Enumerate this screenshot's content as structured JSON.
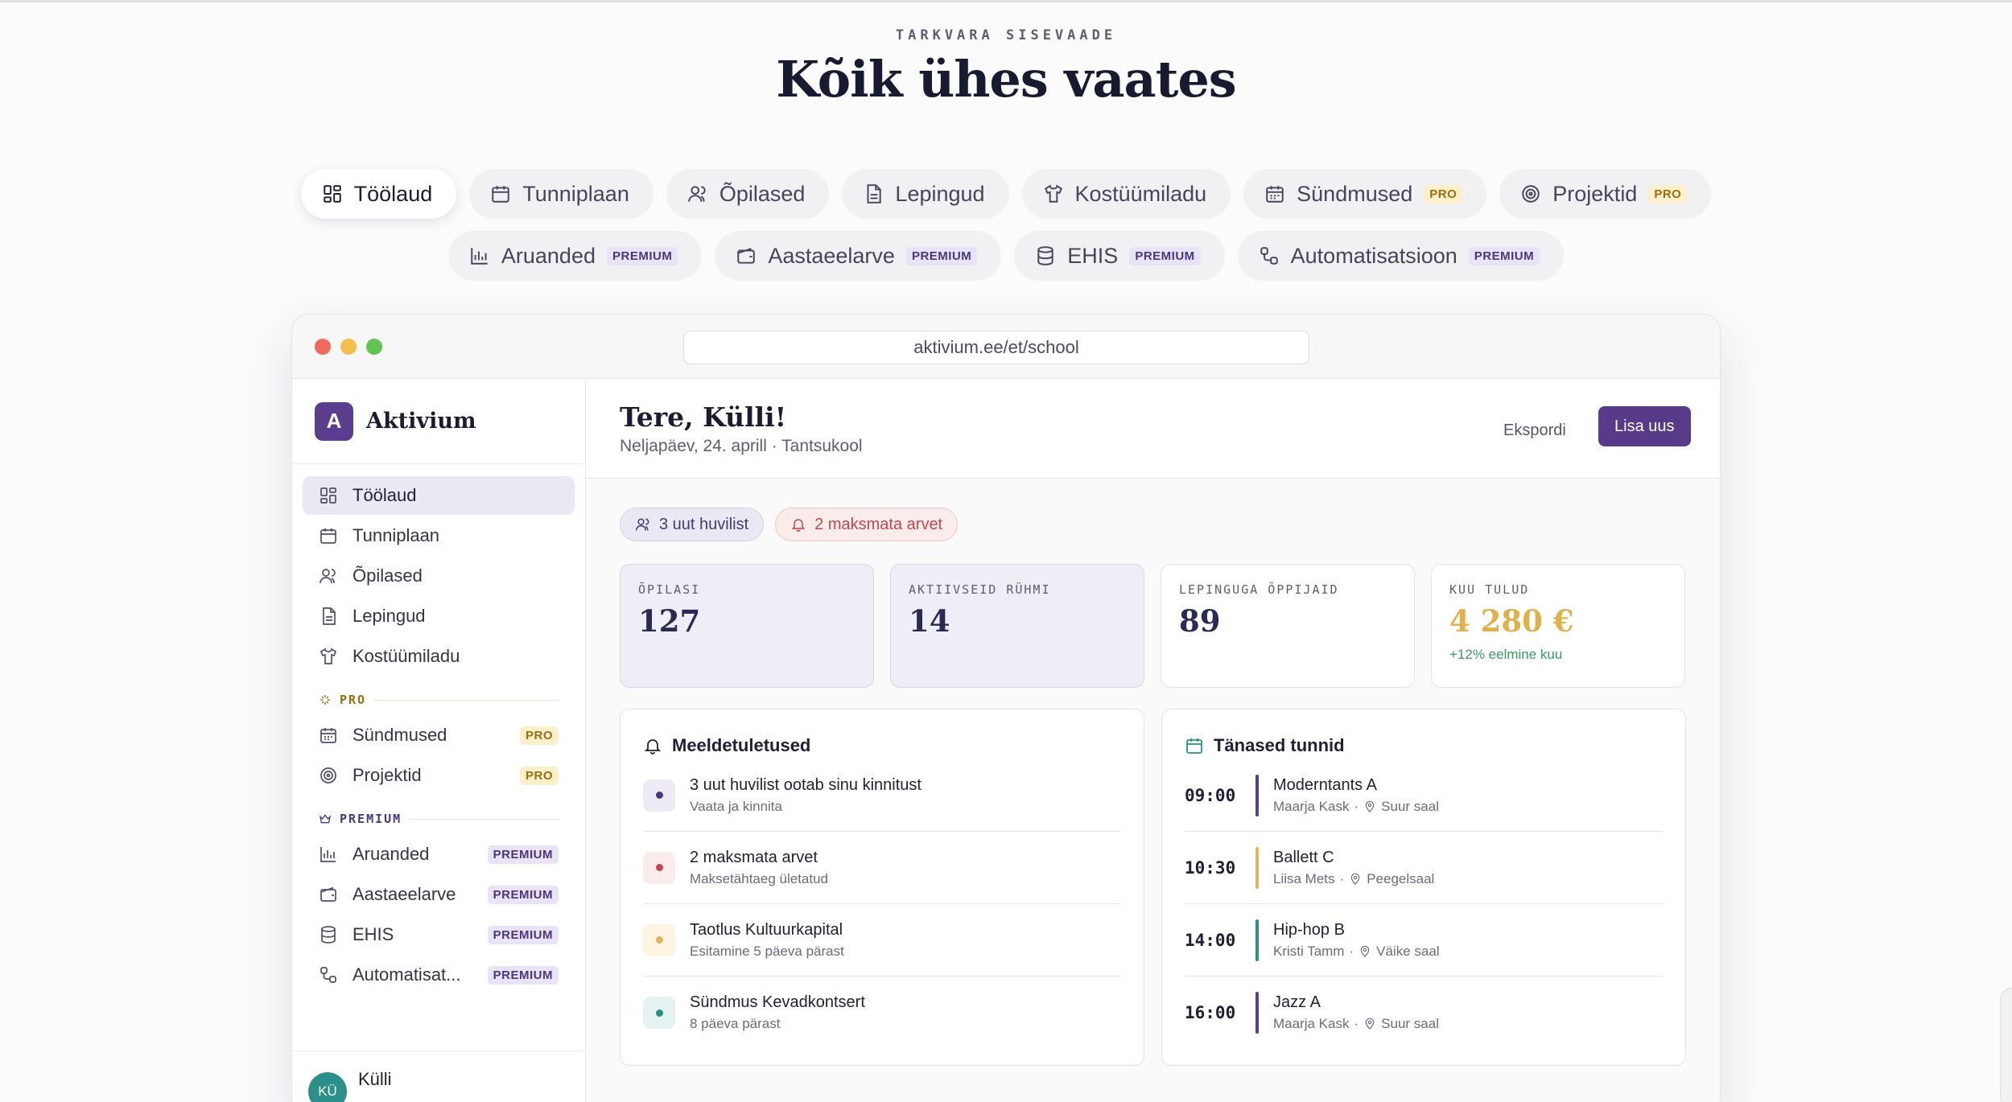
{
  "page": {
    "eyebrow": "TARKVARA SISEVAADE",
    "headline": "Kõik ühes vaates"
  },
  "feature_tabs": [
    {
      "label": "Töölaud",
      "icon": "dashboard-icon",
      "badge": "",
      "active": true
    },
    {
      "label": "Tunniplaan",
      "icon": "calendar-icon",
      "badge": ""
    },
    {
      "label": "Õpilased",
      "icon": "users-icon",
      "badge": ""
    },
    {
      "label": "Lepingud",
      "icon": "document-icon",
      "badge": ""
    },
    {
      "label": "Kostüümiladu",
      "icon": "shirt-icon",
      "badge": ""
    },
    {
      "label": "Sündmused",
      "icon": "calendar-grid-icon",
      "badge": "PRO"
    },
    {
      "label": "Projektid",
      "icon": "target-icon",
      "badge": "PRO"
    },
    {
      "label": "Aruanded",
      "icon": "bar-chart-icon",
      "badge": "PREMIUM"
    },
    {
      "label": "Aastaeelarve",
      "icon": "wallet-icon",
      "badge": "PREMIUM"
    },
    {
      "label": "EHIS",
      "icon": "database-icon",
      "badge": "PREMIUM"
    },
    {
      "label": "Automatisatsioon",
      "icon": "workflow-icon",
      "badge": "PREMIUM"
    }
  ],
  "browser": {
    "url": "aktivium.ee/et/school"
  },
  "sidebar": {
    "brand_initial": "A",
    "brand_name": "Aktivium",
    "items": [
      {
        "label": "Töölaud",
        "active": true
      },
      {
        "label": "Tunniplaan"
      },
      {
        "label": "Õpilased"
      },
      {
        "label": "Lepingud"
      },
      {
        "label": "Kostüümiladu"
      }
    ],
    "pro_section": "PRO",
    "pro_items": [
      {
        "label": "Sündmused",
        "badge": "PRO"
      },
      {
        "label": "Projektid",
        "badge": "PRO"
      }
    ],
    "premium_section": "PREMIUM",
    "premium_items": [
      {
        "label": "Aruanded",
        "badge": "PREMIUM"
      },
      {
        "label": "Aastaeelarve",
        "badge": "PREMIUM"
      },
      {
        "label": "EHIS",
        "badge": "PREMIUM"
      },
      {
        "label": "Automatisat...",
        "badge": "PREMIUM"
      }
    ],
    "user": {
      "initials": "KÜ",
      "name": "Külli"
    }
  },
  "main": {
    "greeting": "Tere, Külli!",
    "subtitle": "Neljapäev, 24. aprill · Tantsukool",
    "export_label": "Ekspordi",
    "add_label": "Lisa uus",
    "chips": {
      "students": "3 uut huvilist",
      "unpaid": "2 maksmata arvet"
    },
    "stats": [
      {
        "label": "ÕPILASI",
        "value": "127",
        "delta": ""
      },
      {
        "label": "AKTIIVSEID RÜHMI",
        "value": "14",
        "delta": ""
      },
      {
        "label": "LEPINGUGA ÕPPIJAID",
        "value": "89",
        "delta": ""
      },
      {
        "label": "KUU TULUD",
        "value": "4 280 €",
        "delta": "+12% eelmine kuu"
      }
    ],
    "reminders": {
      "title": "Meeldetuletused",
      "items": [
        {
          "title": "3 uut huvilist ootab sinu kinnitust",
          "sub": "Vaata ja kinnita",
          "color": "#4a3783",
          "bg": "#eeebf6"
        },
        {
          "title": "2 maksmata arvet",
          "sub": "Maksetähtaeg ületatud",
          "color": "#c0484d",
          "bg": "#fbecec"
        },
        {
          "title": "Taotlus Kultuurkapital",
          "sub": "Esitamine 5 päeva pärast",
          "color": "#e3b45a",
          "bg": "#fdf4e2"
        },
        {
          "title": "Sündmus Kevadkontsert",
          "sub": "8 päeva pärast",
          "color": "#2b8f8a",
          "bg": "#e4f3f2"
        }
      ]
    },
    "lessons": {
      "title": "Tänased tunnid",
      "items": [
        {
          "time": "09:00",
          "name": "Moderntants A",
          "teacher": "Maarja Kask",
          "room": "Suur saal",
          "color": "#5a3d8c"
        },
        {
          "time": "10:30",
          "name": "Ballett C",
          "teacher": "Liisa Mets",
          "room": "Peegelsaal",
          "color": "#e3b45a"
        },
        {
          "time": "14:00",
          "name": "Hip-hop B",
          "teacher": "Kristi Tamm",
          "room": "Väike saal",
          "color": "#2b8f8a"
        },
        {
          "time": "16:00",
          "name": "Jazz A",
          "teacher": "Maarja Kask",
          "room": "Suur saal",
          "color": "#5a3d8c"
        }
      ]
    }
  },
  "colors": {
    "accent": "#573a88",
    "pro": "#9a6f10",
    "premium": "#4a3783",
    "income": "#e0b14a",
    "positive": "#3a9a64"
  }
}
